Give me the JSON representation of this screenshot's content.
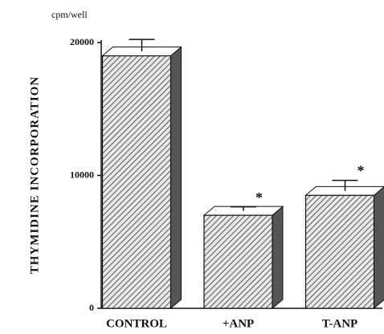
{
  "chart_data": {
    "type": "bar",
    "unit_label": "cpm/well",
    "y_label": "THYMIDINE INCORPORATION",
    "categories": [
      "CONTROL",
      "+ANP",
      "T-ANP"
    ],
    "values": [
      19000,
      7000,
      8500
    ],
    "errors": [
      900,
      300,
      800
    ],
    "color": "#555555",
    "ylim": [
      0,
      20000
    ],
    "yticks": [
      0,
      10000,
      20000
    ],
    "annotations": [
      {
        "text": "*",
        "category": "+ANP"
      },
      {
        "text": "*",
        "category": "T-ANP"
      }
    ]
  }
}
